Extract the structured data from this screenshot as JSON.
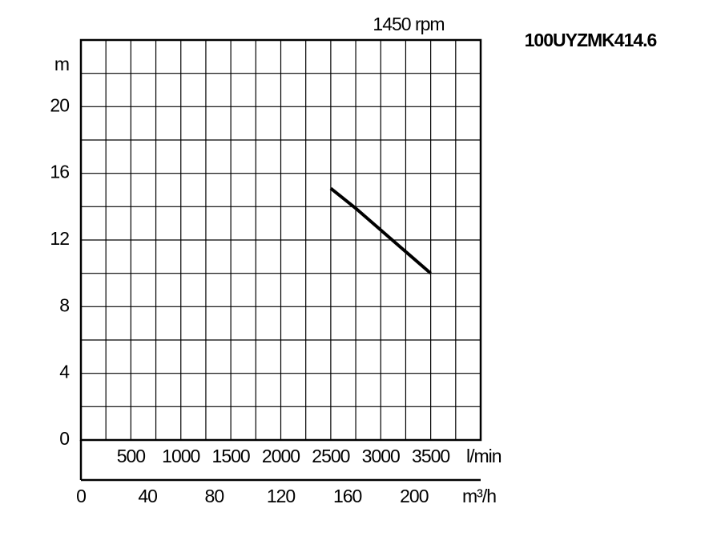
{
  "chart_data": {
    "type": "line",
    "title": "100UYZMK414.6",
    "subtitle": "1450 rpm",
    "ylabel": "m",
    "xlabel": "l/min",
    "x2label": "m³/h",
    "xlim": [
      0,
      4000
    ],
    "xticks": [
      500,
      1000,
      1500,
      2000,
      2500,
      3000,
      3500
    ],
    "xminorticks": [
      250,
      500,
      750,
      1000,
      1250,
      1500,
      1750,
      2000,
      2250,
      2500,
      2750,
      3000,
      3250,
      3500,
      3750
    ],
    "x2lim": [
      0,
      240
    ],
    "x2ticks": [
      0,
      40,
      80,
      120,
      160,
      200
    ],
    "ylim": [
      0,
      24
    ],
    "yticks": [
      0,
      4,
      8,
      12,
      16,
      20
    ],
    "yminorticks": [
      2,
      4,
      6,
      8,
      10,
      12,
      14,
      16,
      18,
      20,
      22
    ],
    "grid": true,
    "series": [
      {
        "color": "#000000",
        "x": [
          2500,
          2750,
          3000,
          3250,
          3500
        ],
        "values": [
          15.1,
          13.9,
          12.6,
          11.3,
          10.0
        ]
      }
    ]
  }
}
